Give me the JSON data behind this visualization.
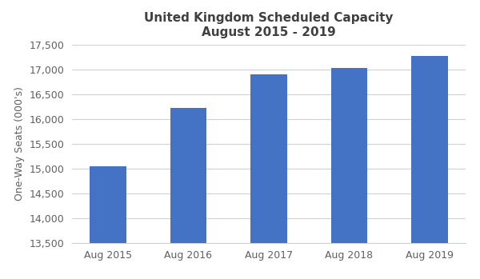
{
  "categories": [
    "Aug 2015",
    "Aug 2016",
    "Aug 2017",
    "Aug 2018",
    "Aug 2019"
  ],
  "values": [
    15050,
    16230,
    16900,
    17030,
    17270
  ],
  "bar_color": "#4472C4",
  "title_line1": "United Kingdom Scheduled Capacity",
  "title_line2": "August 2015 - 2019",
  "ylabel": "One-Way Seats (000's)",
  "ylim": [
    13500,
    17500
  ],
  "yticks": [
    13500,
    14000,
    14500,
    15000,
    15500,
    16000,
    16500,
    17000,
    17500
  ],
  "background_color": "#ffffff",
  "grid_color": "#d0d0d0",
  "title_fontsize": 11,
  "tick_fontsize": 9,
  "ylabel_fontsize": 9,
  "title_color": "#404040",
  "tick_color": "#606060"
}
